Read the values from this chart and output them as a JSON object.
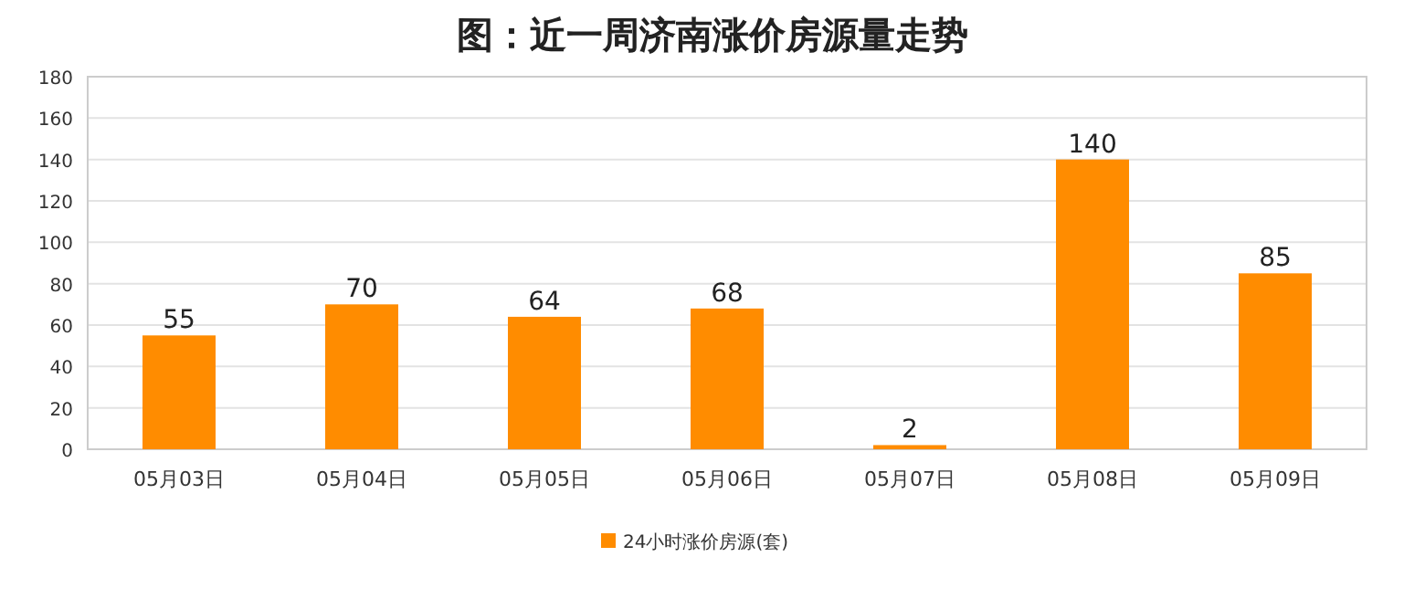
{
  "chart_data": {
    "type": "bar",
    "title": "图：近一周济南涨价房源量走势",
    "categories": [
      "05月03日",
      "05月04日",
      "05月05日",
      "05月06日",
      "05月07日",
      "05月08日",
      "05月09日"
    ],
    "series": [
      {
        "name": "24小时涨价房源(套)",
        "color": "#ff8c00",
        "values": [
          55,
          70,
          64,
          68,
          2,
          140,
          85
        ]
      }
    ],
    "ylim": [
      0,
      180
    ],
    "yticks": [
      0,
      20,
      40,
      60,
      80,
      100,
      120,
      140,
      160,
      180
    ],
    "grid": "y",
    "data_labels": true,
    "legend": "bottom"
  }
}
